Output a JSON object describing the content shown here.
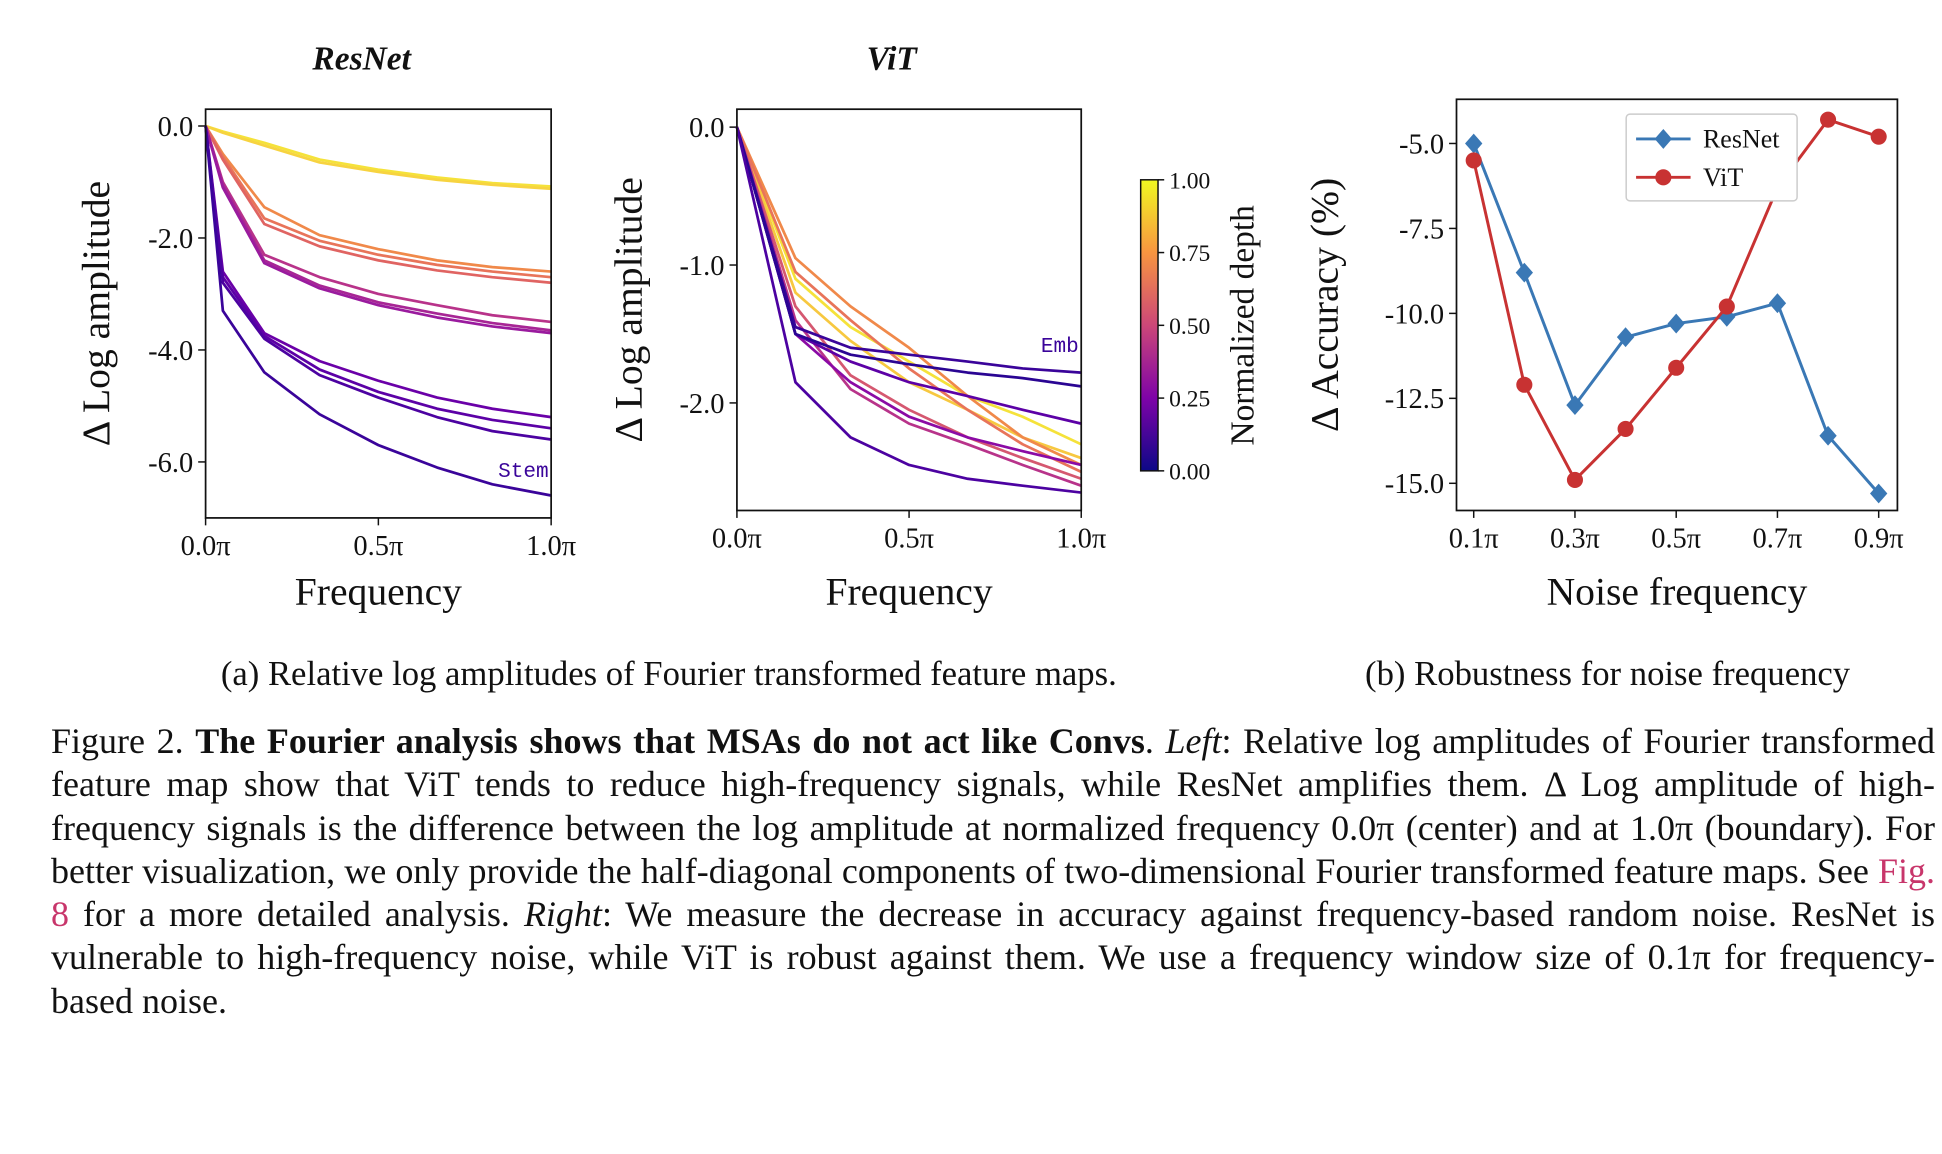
{
  "chart_data": [
    {
      "type": "line",
      "title": "ResNet",
      "xlabel": "Frequency",
      "ylabel": "Δ Log amplitude",
      "x": [
        0,
        0.05,
        0.17,
        0.33,
        0.5,
        0.67,
        0.83,
        1.0
      ],
      "xlim": [
        0,
        1
      ],
      "xticks": [
        {
          "value": 0,
          "label": "0.0π"
        },
        {
          "value": 0.5,
          "label": "0.5π"
        },
        {
          "value": 1,
          "label": "1.0π"
        }
      ],
      "ylim": [
        -7.0,
        0.3
      ],
      "yticks": [
        {
          "value": 0,
          "label": "0.0"
        },
        {
          "value": -2,
          "label": "-2.0"
        },
        {
          "value": -4,
          "label": "-4.0"
        },
        {
          "value": -6,
          "label": "-6.0"
        }
      ],
      "annotations": [
        "Stem"
      ],
      "series": [
        {
          "color": "#f5e23a",
          "values": [
            0,
            -0.1,
            -0.3,
            -0.6,
            -0.78,
            -0.92,
            -1.02,
            -1.08
          ]
        },
        {
          "color": "#f7d340",
          "values": [
            0,
            -0.12,
            -0.35,
            -0.65,
            -0.82,
            -0.96,
            -1.05,
            -1.12
          ]
        },
        {
          "color": "#f0894a",
          "values": [
            0,
            -0.5,
            -1.45,
            -1.95,
            -2.2,
            -2.4,
            -2.52,
            -2.6
          ]
        },
        {
          "color": "#e8745a",
          "values": [
            0,
            -0.55,
            -1.65,
            -2.05,
            -2.3,
            -2.48,
            -2.6,
            -2.7
          ]
        },
        {
          "color": "#e06462",
          "values": [
            0,
            -0.6,
            -1.75,
            -2.15,
            -2.4,
            -2.58,
            -2.7,
            -2.8
          ]
        },
        {
          "color": "#b8338a",
          "values": [
            0,
            -1.0,
            -2.3,
            -2.7,
            -3.0,
            -3.2,
            -3.38,
            -3.5
          ]
        },
        {
          "color": "#a72695",
          "values": [
            0,
            -1.05,
            -2.4,
            -2.85,
            -3.15,
            -3.35,
            -3.52,
            -3.65
          ]
        },
        {
          "color": "#9a1b9e",
          "values": [
            0,
            -1.1,
            -2.45,
            -2.9,
            -3.2,
            -3.42,
            -3.58,
            -3.7
          ]
        },
        {
          "color": "#6a00a8",
          "values": [
            0,
            -2.6,
            -3.7,
            -4.2,
            -4.55,
            -4.85,
            -5.05,
            -5.2
          ]
        },
        {
          "color": "#5c01a6",
          "values": [
            0,
            -2.7,
            -3.75,
            -4.35,
            -4.75,
            -5.05,
            -5.25,
            -5.4
          ]
        },
        {
          "color": "#4c02a1",
          "values": [
            0,
            -2.8,
            -3.8,
            -4.45,
            -4.85,
            -5.2,
            -5.45,
            -5.6
          ]
        },
        {
          "color": "#3a049a",
          "values": [
            0,
            -3.3,
            -4.4,
            -5.15,
            -5.7,
            -6.1,
            -6.4,
            -6.6
          ]
        }
      ]
    },
    {
      "type": "line",
      "title": "ViT",
      "xlabel": "Frequency",
      "ylabel": "Δ Log amplitude",
      "x": [
        0,
        0.17,
        0.33,
        0.5,
        0.67,
        0.83,
        1.0
      ],
      "xlim": [
        0,
        1
      ],
      "xticks": [
        {
          "value": 0,
          "label": "0.0π"
        },
        {
          "value": 0.5,
          "label": "0.5π"
        },
        {
          "value": 1,
          "label": "1.0π"
        }
      ],
      "ylim": [
        -2.78,
        0.13
      ],
      "yticks": [
        {
          "value": 0,
          "label": "0.0"
        },
        {
          "value": -1,
          "label": "-1.0"
        },
        {
          "value": -2,
          "label": "-2.0"
        }
      ],
      "annotations": [
        "Emb"
      ],
      "colorbar": {
        "label": "Normalized depth",
        "lim": [
          0,
          1
        ],
        "colors": [
          "#0d0887",
          "#7e03a8",
          "#cc4778",
          "#f89540",
          "#f0f921"
        ],
        "ticks": [
          {
            "value": 0,
            "label": "0.00"
          },
          {
            "value": 0.25,
            "label": "0.25"
          },
          {
            "value": 0.5,
            "label": "0.50"
          },
          {
            "value": 0.75,
            "label": "0.75"
          },
          {
            "value": 1,
            "label": "1.00"
          }
        ]
      },
      "series": [
        {
          "color": "#f5e23a",
          "values": [
            0,
            -1.1,
            -1.45,
            -1.7,
            -1.95,
            -2.1,
            -2.3
          ]
        },
        {
          "color": "#f7c840",
          "values": [
            0,
            -1.2,
            -1.55,
            -1.85,
            -2.05,
            -2.25,
            -2.4
          ]
        },
        {
          "color": "#f0894a",
          "values": [
            0,
            -0.95,
            -1.3,
            -1.6,
            -1.95,
            -2.25,
            -2.45
          ]
        },
        {
          "color": "#e8745a",
          "values": [
            0,
            -1.05,
            -1.4,
            -1.75,
            -2.05,
            -2.3,
            -2.5
          ]
        },
        {
          "color": "#d55870",
          "values": [
            0,
            -1.3,
            -1.8,
            -2.05,
            -2.25,
            -2.4,
            -2.55
          ]
        },
        {
          "color": "#b8338a",
          "values": [
            0,
            -1.4,
            -1.9,
            -2.15,
            -2.3,
            -2.45,
            -2.6
          ]
        },
        {
          "color": "#8b0aa5",
          "values": [
            0,
            -1.5,
            -1.85,
            -2.1,
            -2.25,
            -2.35,
            -2.45
          ]
        },
        {
          "color": "#5c01a6",
          "values": [
            0,
            -1.5,
            -1.7,
            -1.85,
            -1.95,
            -2.05,
            -2.15
          ]
        },
        {
          "color": "#3a049a",
          "values": [
            0,
            -1.45,
            -1.6,
            -1.65,
            -1.7,
            -1.75,
            -1.78
          ]
        },
        {
          "color": "#2a0593",
          "values": [
            0,
            -1.5,
            -1.65,
            -1.72,
            -1.78,
            -1.82,
            -1.88
          ]
        },
        {
          "color": "#4c02a1",
          "values": [
            0,
            -1.85,
            -2.25,
            -2.45,
            -2.55,
            -2.6,
            -2.65
          ]
        }
      ]
    },
    {
      "type": "line",
      "xlabel": "Noise frequency",
      "ylabel": "Δ Accuracy (%)",
      "x": [
        0.1,
        0.2,
        0.3,
        0.4,
        0.5,
        0.6,
        0.7,
        0.8,
        0.9
      ],
      "xlim": [
        0.066,
        0.937
      ],
      "xticks": [
        {
          "value": 0.1,
          "label": "0.1π"
        },
        {
          "value": 0.3,
          "label": "0.3π"
        },
        {
          "value": 0.5,
          "label": "0.5π"
        },
        {
          "value": 0.7,
          "label": "0.7π"
        },
        {
          "value": 0.9,
          "label": "0.9π"
        }
      ],
      "ylim": [
        -15.8,
        -3.7
      ],
      "yticks": [
        {
          "value": -5,
          "label": "-5.0"
        },
        {
          "value": -7.5,
          "label": "-7.5"
        },
        {
          "value": -10,
          "label": "-10.0"
        },
        {
          "value": -12.5,
          "label": "-12.5"
        },
        {
          "value": -15,
          "label": "-15.0"
        }
      ],
      "legend": "upper center",
      "series": [
        {
          "name": "ResNet",
          "color": "#3a78b5",
          "marker": "diamond",
          "values": [
            -5.0,
            -8.8,
            -12.7,
            -10.7,
            -10.3,
            -10.1,
            -9.7,
            -13.6,
            -15.3
          ]
        },
        {
          "name": "ViT",
          "color": "#c83232",
          "marker": "circle",
          "values": [
            -5.5,
            -12.1,
            -14.9,
            -13.4,
            -11.6,
            -9.8,
            -6.3,
            -4.3,
            -4.8
          ]
        }
      ]
    }
  ],
  "subcaptions": [
    "(a) Relative log amplitudes of Fourier transformed feature maps.",
    "(b) Robustness for noise frequency"
  ],
  "caption": {
    "parts": [
      "Figure 2. ",
      "The Fourier analysis shows that MSAs do not act like Convs",
      ". ",
      "Left",
      ": Relative log amplitudes of Fourier transformed feature map show that ViT tends to reduce high-frequency signals, while ResNet amplifies them. Δ Log amplitude of high-frequency signals is the difference between the log amplitude at normalized frequency 0.0π (center) and at 1.0π (boundary). For better visualization, we only provide the half-diagonal components of two-dimensional Fourier transformed feature maps. See ",
      "Fig. 8",
      " for a more detailed analysis. ",
      "Right",
      ": We measure the decrease in accuracy against frequency-based random noise. ResNet is vulnerable to high-frequency noise, while ViT is robust against them. We use a frequency window size of 0.1π for frequency-based noise."
    ]
  }
}
